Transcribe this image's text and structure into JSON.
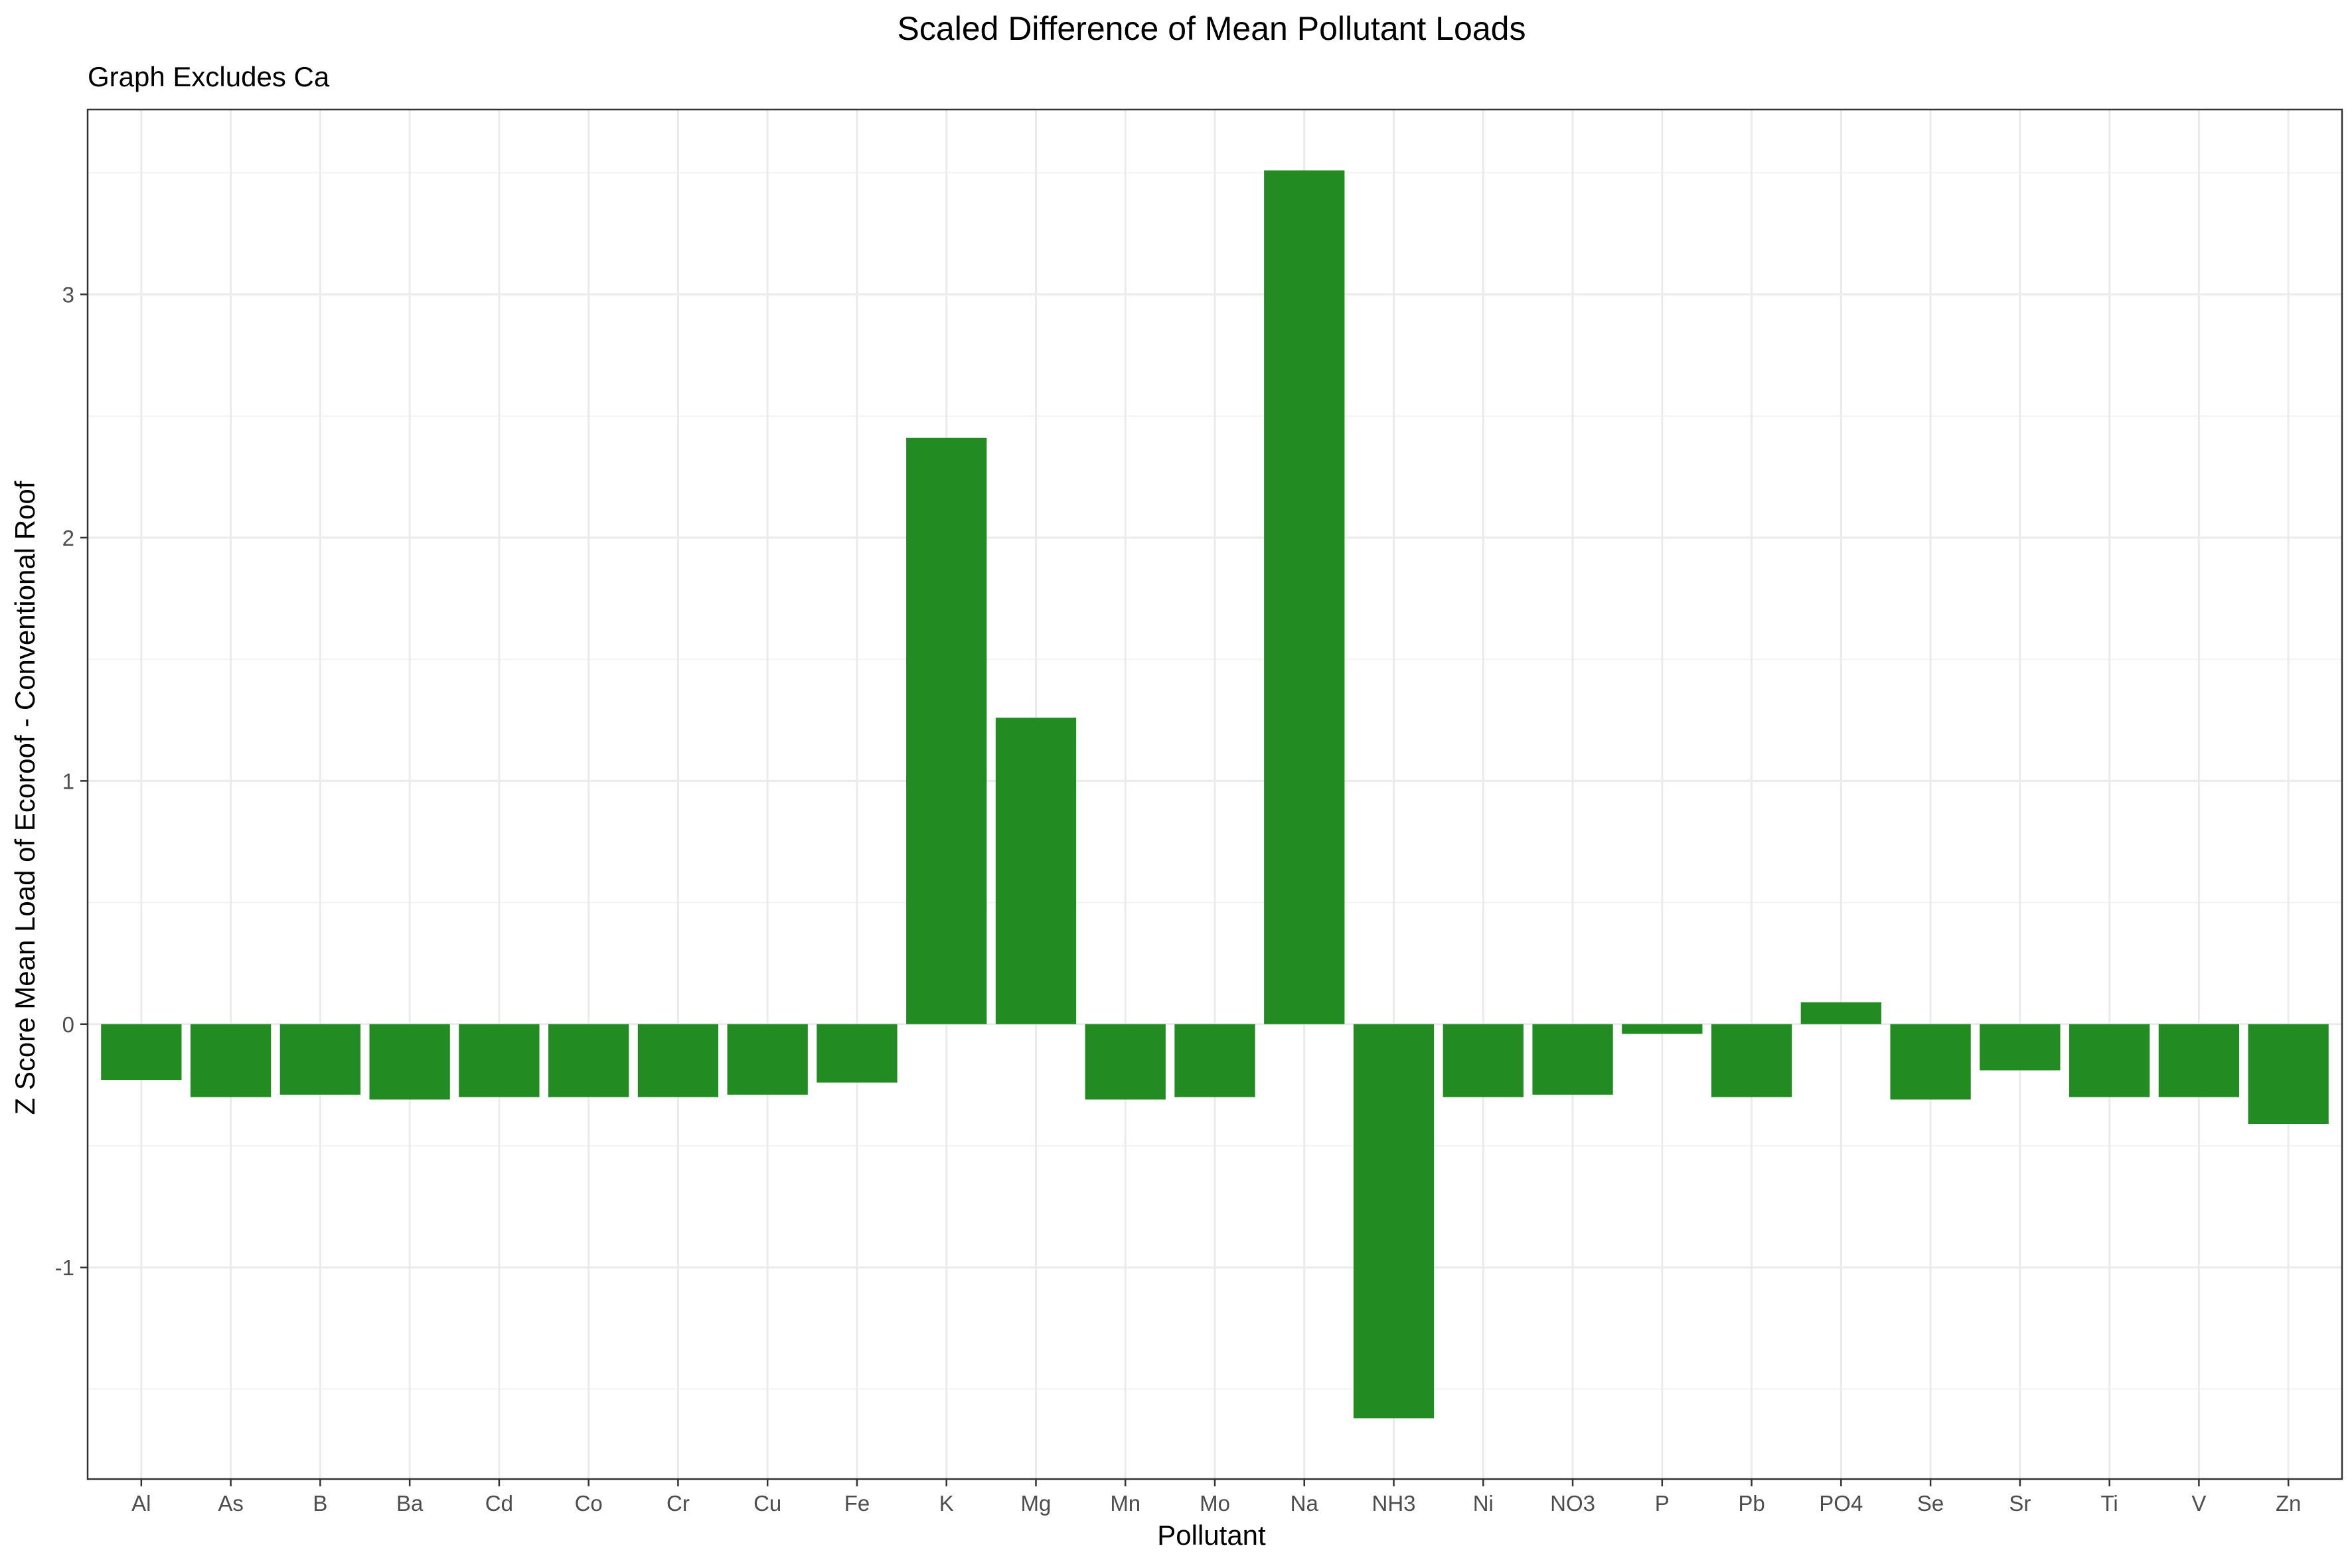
{
  "chart_data": {
    "type": "bar",
    "title": "Scaled Difference of Mean Pollutant Loads",
    "subtitle": "Graph Excludes Ca",
    "xlabel": "Pollutant",
    "ylabel": "Z Score Mean Load of Ecoroof - Conventional Roof",
    "categories": [
      "Al",
      "As",
      "B",
      "Ba",
      "Cd",
      "Co",
      "Cr",
      "Cu",
      "Fe",
      "K",
      "Mg",
      "Mn",
      "Mo",
      "Na",
      "NH3",
      "Ni",
      "NO3",
      "P",
      "Pb",
      "PO4",
      "Se",
      "Sr",
      "Ti",
      "V",
      "Zn"
    ],
    "values": [
      -0.23,
      -0.3,
      -0.29,
      -0.31,
      -0.3,
      -0.3,
      -0.3,
      -0.29,
      -0.24,
      2.41,
      1.26,
      -0.31,
      -0.3,
      3.51,
      -1.62,
      -0.3,
      -0.29,
      -0.04,
      -0.3,
      0.09,
      -0.31,
      -0.19,
      -0.3,
      -0.3,
      -0.41
    ],
    "ylim": [
      -1.87,
      3.76
    ],
    "yticks": [
      -1,
      0,
      1,
      2,
      3
    ],
    "bar_color": "#228b22",
    "grid": true,
    "legend": "none"
  }
}
